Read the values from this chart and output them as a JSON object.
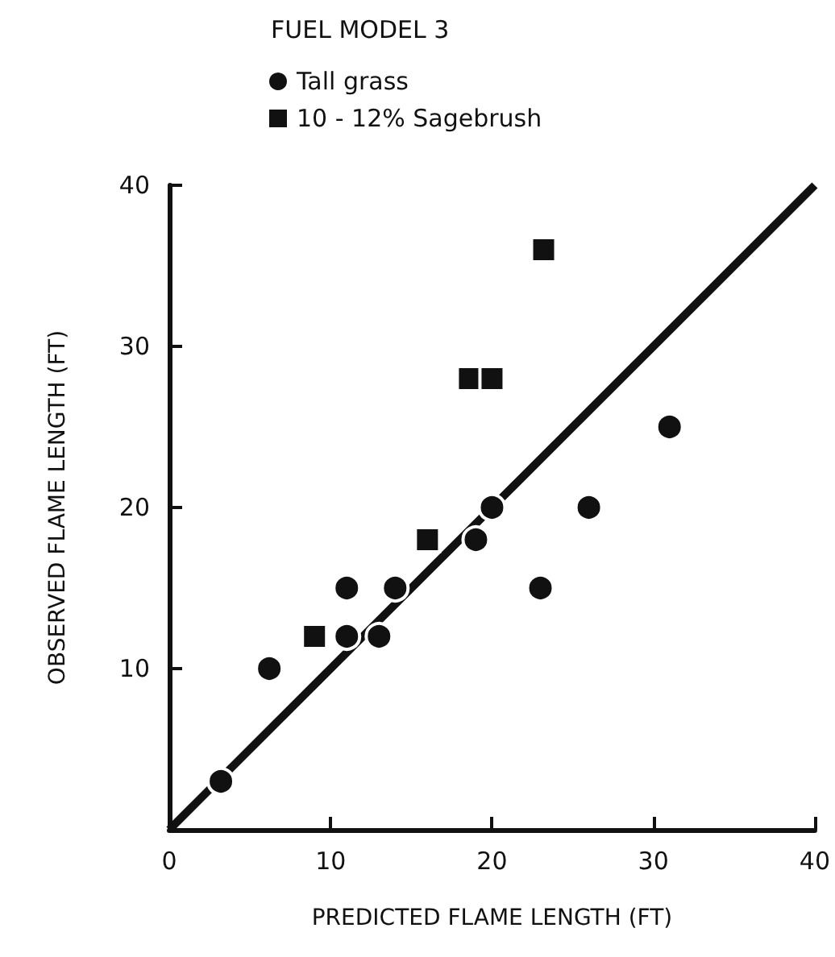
{
  "chart_data": {
    "type": "scatter",
    "legend_title": "FUEL MODEL 3",
    "xlabel": "PREDICTED FLAME LENGTH (FT)",
    "ylabel": "OBSERVED FLAME LENGTH (FT)",
    "series": [
      {
        "name": "Tall grass",
        "marker": "circle",
        "color": "#111111",
        "x": [
          3.2,
          6.2,
          11,
          11,
          13,
          14,
          19,
          20,
          23,
          26,
          31
        ],
        "values": [
          3,
          10,
          15,
          12,
          12,
          15,
          18,
          20,
          15,
          20,
          25
        ]
      },
      {
        "name": "10 - 12% Sagebrush",
        "marker": "square",
        "color": "#111111",
        "x": [
          9,
          16,
          18.6,
          20,
          23.2
        ],
        "values": [
          12,
          18,
          28,
          28,
          36
        ]
      },
      {
        "type": "line",
        "marker": "none",
        "color": "#111111",
        "x": [
          0,
          40
        ],
        "values": [
          0,
          40
        ]
      }
    ],
    "xlim": [
      0,
      40
    ],
    "xticks": [
      0,
      10,
      20,
      30,
      40
    ],
    "ylim": [
      0,
      40
    ],
    "yticks": [
      10,
      20,
      30,
      40
    ],
    "grid": false,
    "legend": "top"
  }
}
